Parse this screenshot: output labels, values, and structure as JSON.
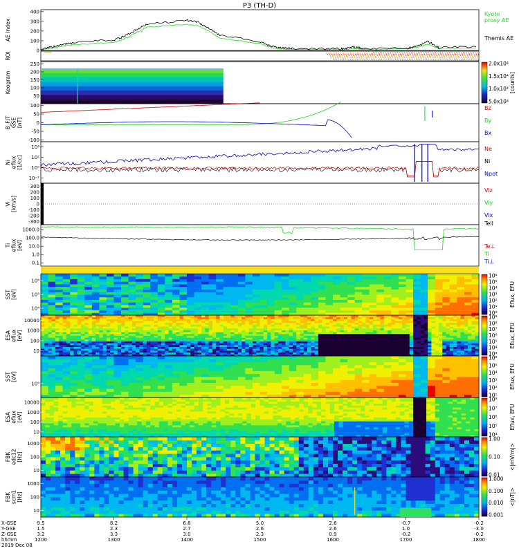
{
  "chart_data": {
    "type": "line",
    "title": "P3 (TH-D)",
    "panels": [
      {
        "id": "ae",
        "ylabel": "AE Index",
        "yticks": [
          "0",
          "100",
          "200",
          "300",
          "400"
        ],
        "ylim": [
          0,
          420
        ],
        "series": [
          {
            "name": "Kyoto proxy AE",
            "color": "#22dd22",
            "x": [
              1200,
              1215,
              1230,
              1245,
              1300,
              1315,
              1330,
              1345,
              1400,
              1415,
              1430,
              1445,
              1500,
              1515,
              1530,
              1545,
              1600,
              1615,
              1630,
              1645,
              1700,
              1715,
              1730,
              1745,
              1800
            ],
            "values": [
              5,
              25,
              45,
              60,
              85,
              120,
              180,
              240,
              270,
              255,
              200,
              130,
              70,
              30,
              15,
              12,
              10,
              10,
              20,
              10,
              15,
              30,
              65,
              20,
              25
            ]
          },
          {
            "name": "Themis AE",
            "color": "#000000",
            "x": [
              1200,
              1215,
              1230,
              1245,
              1300,
              1315,
              1330,
              1345,
              1400,
              1415,
              1430,
              1445,
              1500,
              1515,
              1530,
              1545,
              1600,
              1615,
              1630,
              1645,
              1700,
              1715,
              1730,
              1745,
              1800
            ],
            "values": [
              10,
              35,
              60,
              80,
              110,
              145,
              210,
              270,
              310,
              290,
              230,
              160,
              90,
              45,
              25,
              20,
              18,
              18,
              35,
              18,
              22,
              40,
              95,
              30,
              40
            ]
          }
        ]
      },
      {
        "id": "roi",
        "ylabel": "ROI"
      },
      {
        "id": "keogram",
        "ylabel": "Keogram",
        "yticks": [
          "50",
          "100",
          "150",
          "200",
          "250"
        ],
        "colorbar": {
          "label": "[counts]",
          "ticks": [
            "5.0x10³",
            "1.0x10⁴",
            "1.5x10⁴",
            "2.0x10⁴"
          ]
        }
      },
      {
        "id": "bfield",
        "ylabel_lines": [
          "B_FIT",
          "GSE",
          "[nT]"
        ],
        "yticks": [
          "-100",
          "-50",
          "0",
          "50",
          "100"
        ],
        "series": [
          {
            "name": "Bz",
            "color": "#cc0000"
          },
          {
            "name": "By",
            "color": "#22cc22"
          },
          {
            "name": "Bx",
            "color": "#0000cc"
          }
        ]
      },
      {
        "id": "density",
        "ylabel_lines": [
          "Ni",
          "eflux",
          "[1/cc]"
        ],
        "yticks": [
          "10⁻²",
          "10⁰",
          "10²",
          "10⁴"
        ],
        "series": [
          {
            "name": "Ne",
            "color": "#cc0000"
          },
          {
            "name": "Ni",
            "color": "#000000"
          },
          {
            "name": "Npot",
            "color": "#0000cc"
          }
        ]
      },
      {
        "id": "velocity",
        "ylabel_lines": [
          "Vi",
          "[km/s]"
        ],
        "yticks": [
          "-300",
          "-200",
          "-100",
          "0",
          "100",
          "200",
          "300"
        ],
        "series": [
          {
            "name": "Viz",
            "color": "#cc0000"
          },
          {
            "name": "Viy",
            "color": "#22cc22"
          },
          {
            "name": "Vix",
            "color": "#0000cc"
          }
        ]
      },
      {
        "id": "temperature",
        "ylabel_lines": [
          "Ti",
          "eflux",
          "[eV]"
        ],
        "yticks": [
          "0.1",
          "1.0",
          "10.0",
          "100.0",
          "1000.0"
        ],
        "series": [
          {
            "name": "Tell",
            "color": "#000000"
          },
          {
            "name": "Te⊥",
            "color": "#cc0000"
          },
          {
            "name": "Ti",
            "color": "#22cc22"
          },
          {
            "name": "Ti⊥",
            "color": "#0000cc"
          }
        ]
      },
      {
        "id": "sst1",
        "ylabel_lines": [
          "SST",
          "[eV]"
        ],
        "yticks": [
          "10⁴",
          "10⁵",
          "10⁶"
        ],
        "colorbar": {
          "label": "Eflux, EFU",
          "ticks": [
            "10⁰",
            "10¹",
            "10²",
            "10³",
            "10⁴",
            "10⁵",
            "10⁶"
          ]
        }
      },
      {
        "id": "esa1",
        "ylabel_lines": [
          "ESA",
          "eflux",
          "[eV]"
        ],
        "yticks": [
          "10",
          "100",
          "1000",
          "10000"
        ],
        "colorbar": {
          "label": "Eflux, EFU",
          "ticks": [
            "10³",
            "10⁴",
            "10⁵",
            "10⁶",
            "10⁷",
            "10⁸",
            "10⁹"
          ]
        }
      },
      {
        "id": "sst2",
        "ylabel_lines": [
          "SST",
          "[eV]"
        ],
        "yticks": [
          "10⁵"
        ],
        "colorbar": {
          "label": "Eflux, EFU",
          "ticks": [
            "10¹",
            "10²",
            "10³",
            "10⁴",
            "10⁵",
            "10⁶"
          ]
        }
      },
      {
        "id": "esa2",
        "ylabel_lines": [
          "ESA",
          "eflux",
          "[eV]"
        ],
        "yticks": [
          "10",
          "100",
          "1000",
          "10000"
        ],
        "colorbar": {
          "label": "Eflux, EFU",
          "ticks": [
            "10⁴",
            "10⁵",
            "10⁶",
            "10⁷",
            "10⁸"
          ]
        }
      },
      {
        "id": "fbk1",
        "ylabel_lines": [
          "FBK",
          "edc12",
          "[Hz]"
        ],
        "yticks": [
          "10",
          "100",
          "1000"
        ],
        "colorbar": {
          "label": "<|mV/m|>",
          "ticks": [
            "0.01",
            "0.10",
            "1.00"
          ]
        }
      },
      {
        "id": "fbk2",
        "ylabel_lines": [
          "FBK",
          "scm1",
          "[Hz]"
        ],
        "yticks": [
          "10",
          "100",
          "1000"
        ],
        "colorbar": {
          "label": "<|nT|>",
          "ticks": [
            "0.001",
            "0.010",
            "0.100",
            "1.000"
          ]
        }
      }
    ],
    "xaxis": {
      "rows": [
        {
          "label": "X-GSE",
          "values": [
            "9.5",
            "8.2",
            "6.8",
            "5.0",
            "2.6",
            "-0.7",
            "-0.2"
          ]
        },
        {
          "label": "Y-GSE",
          "values": [
            "1.5",
            "2.3",
            "2.7",
            "2.6",
            "2.6",
            "1.0",
            "-3.0"
          ]
        },
        {
          "label": "Z-GSE",
          "values": [
            "3.2",
            "3.3",
            "3.0",
            "2.3",
            "0.9",
            "-0.2",
            "-0.2"
          ]
        },
        {
          "label": "hhmm",
          "values": [
            "1200",
            "1300",
            "1400",
            "1500",
            "1600",
            "1700",
            "1800"
          ]
        }
      ],
      "date": "2019 Dec 08"
    }
  },
  "legend_labels": {
    "kyoto": [
      "Kyoto",
      "proxy AE"
    ],
    "themis": "Themis AE"
  }
}
